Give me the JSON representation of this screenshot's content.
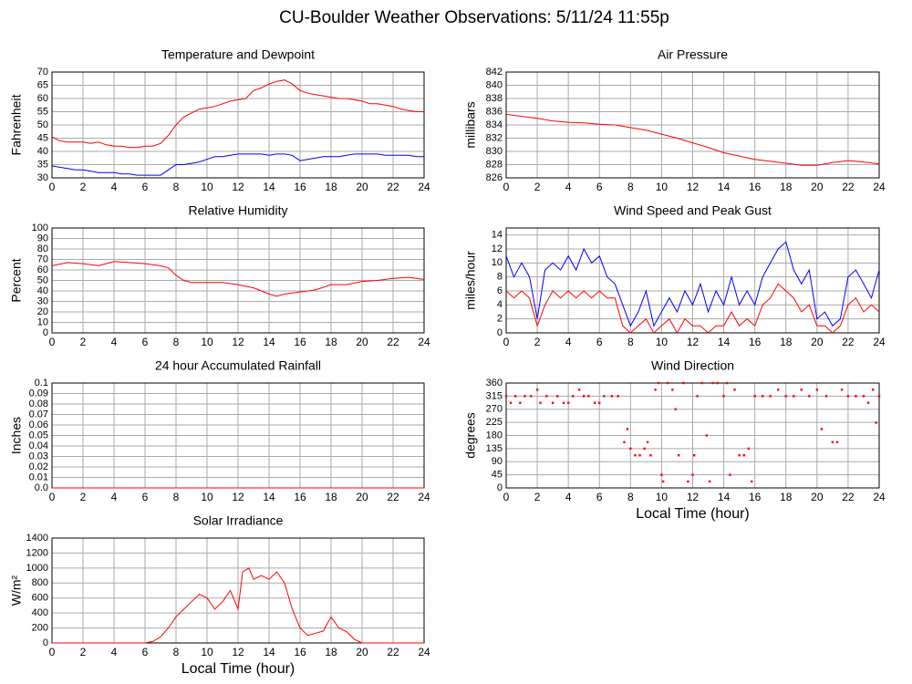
{
  "title": "CU-Boulder Weather Observations: 5/11/24 11:55p",
  "chart_data": [
    {
      "type": "line",
      "title": "Temperature and Dewpoint",
      "ylabel": "Fahrenheit",
      "xlim": [
        0,
        24
      ],
      "xticks": [
        0,
        2,
        4,
        6,
        8,
        10,
        12,
        14,
        16,
        18,
        20,
        22,
        24
      ],
      "ylim": [
        30,
        70
      ],
      "yticks": [
        30,
        35,
        40,
        45,
        50,
        55,
        60,
        65,
        70
      ],
      "grid": true,
      "x": [
        0,
        0.5,
        1,
        1.5,
        2,
        2.5,
        3,
        3.5,
        4,
        4.5,
        5,
        5.5,
        6,
        6.5,
        7,
        7.5,
        8,
        8.5,
        9,
        9.5,
        10,
        10.5,
        11,
        11.5,
        12,
        12.5,
        13,
        13.5,
        14,
        14.5,
        15,
        15.5,
        16,
        16.5,
        17,
        17.5,
        18,
        18.5,
        19,
        19.5,
        20,
        20.5,
        21,
        21.5,
        22,
        22.5,
        23,
        23.5,
        24
      ],
      "series": [
        {
          "color": "#ff0000",
          "values": [
            45.5,
            44,
            43.5,
            43.5,
            43.5,
            43,
            43.5,
            42.5,
            42,
            42,
            41.5,
            41.5,
            42,
            42,
            43,
            46,
            50,
            53,
            54.5,
            56,
            56.5,
            57,
            58,
            59,
            59.5,
            60,
            63,
            64,
            65.5,
            66.5,
            67,
            65.5,
            63,
            62,
            61.5,
            61,
            60.5,
            60,
            60,
            59.5,
            59,
            58,
            58,
            57.5,
            57,
            56,
            55.5,
            55,
            55
          ]
        },
        {
          "color": "#0000ff",
          "values": [
            34.5,
            34,
            33.5,
            33,
            33,
            32.5,
            32,
            32,
            32,
            31.5,
            31.5,
            31,
            31,
            31,
            31,
            33,
            35,
            35,
            35.5,
            36,
            37,
            38,
            38,
            38.5,
            39,
            39,
            39,
            39,
            38.5,
            39,
            39,
            38.5,
            36.5,
            37,
            37.5,
            38,
            38,
            38,
            38.5,
            39,
            39,
            39,
            39,
            38.5,
            38.5,
            38.5,
            38.5,
            38,
            38
          ]
        }
      ]
    },
    {
      "type": "line",
      "title": "Air Pressure",
      "ylabel": "millibars",
      "xlim": [
        0,
        24
      ],
      "xticks": [
        0,
        2,
        4,
        6,
        8,
        10,
        12,
        14,
        16,
        18,
        20,
        22,
        24
      ],
      "ylim": [
        826,
        842
      ],
      "yticks": [
        826,
        828,
        830,
        832,
        834,
        836,
        838,
        840,
        842
      ],
      "grid": true,
      "x": [
        0,
        1,
        2,
        3,
        4,
        5,
        6,
        7,
        8,
        9,
        10,
        11,
        12,
        13,
        14,
        15,
        16,
        17,
        18,
        19,
        20,
        21,
        22,
        23,
        24
      ],
      "series": [
        {
          "color": "#ff0000",
          "values": [
            835.6,
            835.3,
            835,
            834.6,
            834.4,
            834.3,
            834.1,
            834,
            833.6,
            833.2,
            832.6,
            832,
            831.3,
            830.6,
            829.8,
            829.3,
            828.8,
            828.5,
            828.2,
            827.9,
            827.9,
            828.3,
            828.6,
            828.4,
            828.1
          ]
        }
      ]
    },
    {
      "type": "line",
      "title": "Relative Humidity",
      "ylabel": "Percent",
      "xlim": [
        0,
        24
      ],
      "xticks": [
        0,
        2,
        4,
        6,
        8,
        10,
        12,
        14,
        16,
        18,
        20,
        22,
        24
      ],
      "ylim": [
        0,
        100
      ],
      "yticks": [
        0,
        10,
        20,
        30,
        40,
        50,
        60,
        70,
        80,
        90,
        100
      ],
      "grid": true,
      "x": [
        0,
        1,
        2,
        3,
        4,
        5,
        6,
        7,
        7.5,
        8,
        8.5,
        9,
        10,
        11,
        12,
        13,
        14,
        14.5,
        15,
        16,
        17,
        18,
        19,
        20,
        21,
        22,
        23,
        24
      ],
      "series": [
        {
          "color": "#ff0000",
          "values": [
            64,
            67,
            66,
            64,
            68,
            67,
            66,
            64,
            62,
            55,
            50,
            48,
            48,
            48,
            46,
            43,
            37,
            35,
            37,
            39,
            41,
            46,
            46,
            49,
            50,
            52,
            53,
            51
          ]
        }
      ]
    },
    {
      "type": "line",
      "title": "Wind Speed and Peak Gust",
      "ylabel": "miles/hour",
      "xlim": [
        0,
        24
      ],
      "xticks": [
        0,
        2,
        4,
        6,
        8,
        10,
        12,
        14,
        16,
        18,
        20,
        22,
        24
      ],
      "ylim": [
        0,
        15
      ],
      "yticks": [
        0,
        2,
        4,
        6,
        8,
        10,
        12,
        14
      ],
      "grid": true,
      "x": [
        0,
        0.5,
        1,
        1.5,
        2,
        2.5,
        3,
        3.5,
        4,
        4.5,
        5,
        5.5,
        6,
        6.5,
        7,
        7.5,
        8,
        8.5,
        9,
        9.5,
        10,
        10.5,
        11,
        11.5,
        12,
        12.5,
        13,
        13.5,
        14,
        14.5,
        15,
        15.5,
        16,
        16.5,
        17,
        17.5,
        18,
        18.5,
        19,
        19.5,
        20,
        20.5,
        21,
        21.5,
        22,
        22.5,
        23,
        23.5,
        24
      ],
      "series": [
        {
          "color": "#0000ff",
          "values": [
            11,
            8,
            10,
            8,
            2,
            9,
            10,
            9,
            11,
            9,
            12,
            10,
            11,
            8,
            7,
            4,
            1,
            3,
            6,
            1,
            3,
            5,
            3,
            6,
            4,
            7,
            3,
            6,
            4,
            8,
            4,
            6,
            4,
            8,
            10,
            12,
            13,
            9,
            7,
            9,
            2,
            3,
            1,
            2,
            8,
            9,
            7,
            5,
            9
          ]
        },
        {
          "color": "#ff0000",
          "values": [
            6,
            5,
            6,
            5,
            1,
            4,
            6,
            5,
            6,
            5,
            6,
            5,
            6,
            5,
            5,
            1,
            0,
            1,
            2,
            0,
            1,
            2,
            0,
            2,
            1,
            1,
            0,
            1,
            1,
            3,
            1,
            2,
            1,
            4,
            5,
            7,
            6,
            5,
            3,
            4,
            1,
            1,
            0,
            1,
            4,
            5,
            3,
            4,
            3
          ]
        }
      ]
    },
    {
      "type": "line",
      "title": "24 hour Accumulated Rainfall",
      "ylabel": "Inches",
      "xlim": [
        0,
        24
      ],
      "xticks": [
        0,
        2,
        4,
        6,
        8,
        10,
        12,
        14,
        16,
        18,
        20,
        22,
        24
      ],
      "ylim": [
        0,
        0.1
      ],
      "yticks": [
        {
          "value": 0,
          "label": "0.0"
        },
        0.01,
        0.02,
        0.03,
        0.04,
        0.05,
        0.06,
        0.07,
        0.08,
        0.09,
        {
          "value": 0.1,
          "label": "0.1"
        }
      ],
      "grid": true,
      "x": [
        0,
        24
      ],
      "series": [
        {
          "color": "#ff0000",
          "values": [
            0,
            0
          ]
        }
      ]
    },
    {
      "type": "scatter",
      "title": "Wind Direction",
      "ylabel": "degrees",
      "xlabel": "Local Time (hour)",
      "xlim": [
        0,
        24
      ],
      "xticks": [
        0,
        2,
        4,
        6,
        8,
        10,
        12,
        14,
        16,
        18,
        20,
        22,
        24
      ],
      "ylim": [
        0,
        360
      ],
      "yticks": [
        0,
        45,
        90,
        135,
        180,
        225,
        270,
        315,
        360
      ],
      "grid": true,
      "x": [
        0,
        0.3,
        0.6,
        0.9,
        1.2,
        1.6,
        2,
        2.2,
        2.6,
        3,
        3.3,
        3.7,
        4,
        4.3,
        4.7,
        5,
        5.3,
        5.7,
        6,
        6.3,
        6.8,
        7.2,
        7.6,
        7.8,
        8,
        8.3,
        8.6,
        8.9,
        9.1,
        9.3,
        9.6,
        9.8,
        10,
        10.1,
        10.4,
        10.7,
        10.9,
        11.1,
        11.4,
        11.7,
        12,
        12.1,
        12.3,
        12.6,
        12.9,
        13.1,
        13.3,
        13.6,
        14,
        14.2,
        14.4,
        14.7,
        15,
        15.3,
        15.6,
        15.8,
        16,
        16.5,
        17,
        17.5,
        18,
        18.5,
        19,
        19.5,
        20,
        20.3,
        20.6,
        21,
        21.3,
        21.6,
        22,
        22.5,
        23,
        23.3,
        23.6,
        23.8,
        24
      ],
      "series": [
        {
          "color": "#ff0000",
          "values": [
            315,
            292,
            315,
            292,
            315,
            315,
            337,
            292,
            315,
            292,
            315,
            292,
            292,
            315,
            337,
            315,
            315,
            292,
            292,
            315,
            315,
            315,
            157,
            202,
            135,
            112,
            112,
            135,
            157,
            112,
            337,
            360,
            45,
            22,
            360,
            337,
            270,
            112,
            360,
            22,
            45,
            112,
            315,
            360,
            180,
            22,
            360,
            360,
            315,
            360,
            45,
            337,
            112,
            112,
            135,
            22,
            315,
            315,
            315,
            337,
            315,
            315,
            337,
            315,
            337,
            202,
            315,
            157,
            157,
            337,
            315,
            315,
            315,
            292,
            337,
            224,
            315
          ]
        }
      ]
    },
    {
      "type": "line",
      "title": "Solar Irradiance",
      "ylabel": "W/m²",
      "xlabel": "Local Time (hour)",
      "xlim": [
        0,
        24
      ],
      "xticks": [
        0,
        2,
        4,
        6,
        8,
        10,
        12,
        14,
        16,
        18,
        20,
        22,
        24
      ],
      "ylim": [
        0,
        1400
      ],
      "yticks": [
        0,
        200,
        400,
        600,
        800,
        1000,
        1200,
        1400
      ],
      "grid": true,
      "x": [
        0,
        6,
        6.5,
        7,
        7.5,
        8,
        8.5,
        9,
        9.5,
        10,
        10.5,
        11,
        11.5,
        12,
        12.3,
        12.7,
        13,
        13.5,
        14,
        14.5,
        15,
        15.5,
        16,
        16.5,
        17,
        17.5,
        18,
        18.5,
        19,
        19.5,
        20,
        24
      ],
      "series": [
        {
          "color": "#ff0000",
          "values": [
            0,
            0,
            20,
            80,
            200,
            350,
            450,
            550,
            650,
            600,
            450,
            550,
            700,
            450,
            950,
            1000,
            850,
            900,
            850,
            950,
            800,
            450,
            200,
            100,
            130,
            160,
            350,
            200,
            150,
            50,
            0,
            0
          ]
        }
      ]
    }
  ]
}
